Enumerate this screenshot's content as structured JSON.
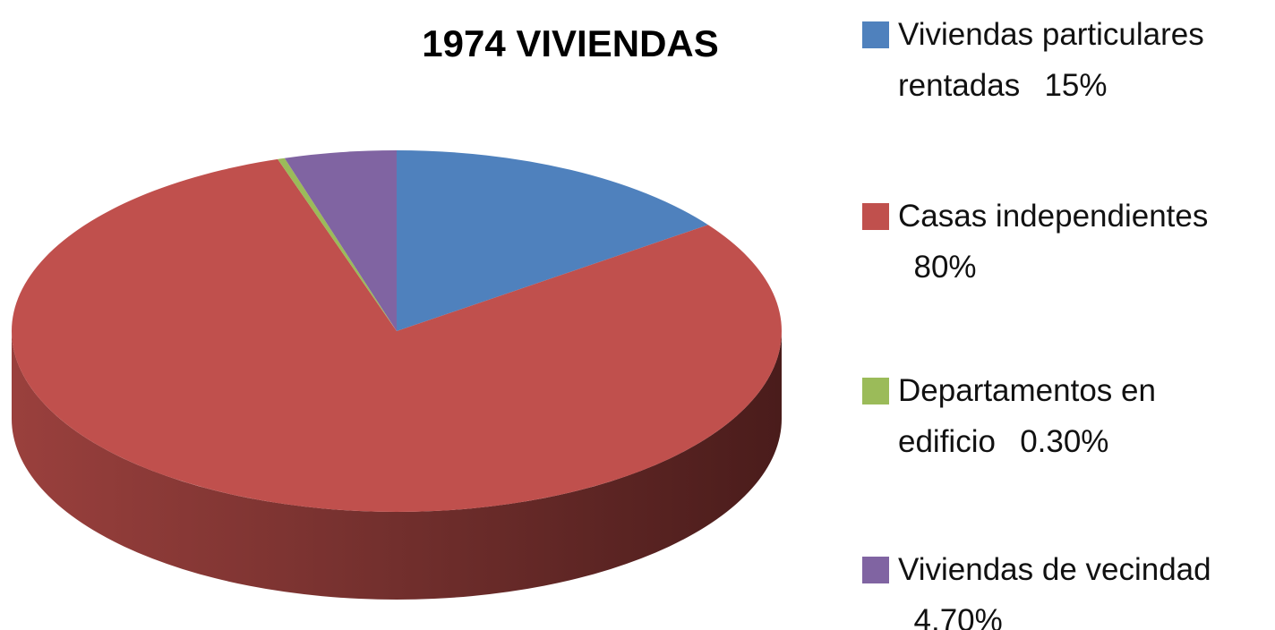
{
  "chart_data": {
    "type": "pie3d",
    "title": "1974 VIVIENDAS",
    "categories": [
      "Viviendas particulares rentadas",
      "Casas independientes",
      "Departamentos en edificio",
      "Viviendas de vecindad"
    ],
    "values": [
      15,
      80,
      0.3,
      4.7
    ],
    "value_labels": [
      "15%",
      "80%",
      "0.30%",
      "4.70%"
    ],
    "colors": [
      "#4f81bd",
      "#c0504d",
      "#9bbb59",
      "#8064a2"
    ],
    "legend": "right"
  }
}
